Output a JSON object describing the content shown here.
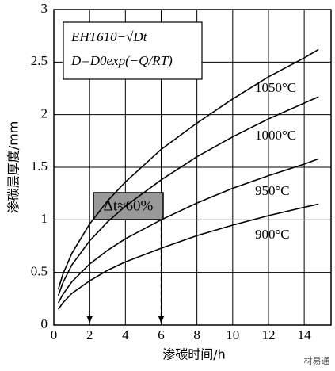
{
  "chart_data": {
    "type": "line",
    "x": [
      0.25,
      0.5,
      1,
      2,
      3,
      4,
      6,
      8,
      10,
      12,
      14,
      14.8
    ],
    "series": [
      {
        "name": "1050°C",
        "color": "#000000",
        "values": [
          0.34,
          0.48,
          0.68,
          0.96,
          1.18,
          1.36,
          1.67,
          1.92,
          2.15,
          2.36,
          2.54,
          2.62
        ]
      },
      {
        "name": "1000°C",
        "color": "#000000",
        "values": [
          0.28,
          0.4,
          0.57,
          0.8,
          0.98,
          1.13,
          1.38,
          1.6,
          1.79,
          1.96,
          2.11,
          2.17
        ]
      },
      {
        "name": "950°C",
        "color": "#000000",
        "values": [
          0.21,
          0.29,
          0.41,
          0.58,
          0.71,
          0.82,
          1.0,
          1.16,
          1.3,
          1.42,
          1.53,
          1.58
        ]
      },
      {
        "name": "900°C",
        "color": "#000000",
        "values": [
          0.15,
          0.21,
          0.3,
          0.42,
          0.52,
          0.6,
          0.73,
          0.85,
          0.95,
          1.04,
          1.12,
          1.15
        ]
      }
    ],
    "xlim": [
      0,
      15.5
    ],
    "xticks": [
      0,
      2,
      4,
      6,
      8,
      10,
      12,
      14
    ],
    "ylim": [
      0,
      3
    ],
    "yticks": [
      0,
      0.5,
      1,
      1.5,
      2,
      2.5,
      3
    ],
    "grid": true,
    "x_label": "渗碳时间/h",
    "y_label": "渗碳层厚度/mm",
    "annotations": [
      "EHT610−√Dt",
      "D=D0exp(−Q/RT)",
      "Δt≈60%"
    ],
    "watermark": "材易通"
  }
}
